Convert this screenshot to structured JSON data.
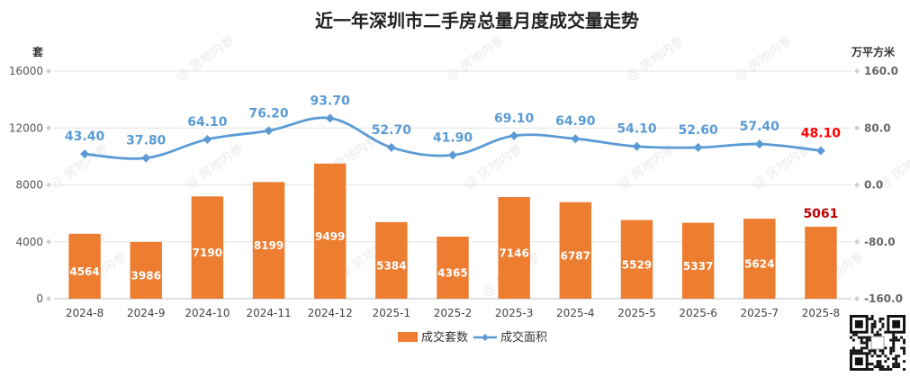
{
  "chart_data": {
    "type": "bar",
    "title": "近一年深圳市二手房总量月度成交量走势",
    "ylabel_left": "套",
    "ylabel_right": "万平方米",
    "categories": [
      "2024-8",
      "2024-9",
      "2024-10",
      "2024-11",
      "2024-12",
      "2025-1",
      "2025-2",
      "2025-3",
      "2025-4",
      "2025-5",
      "2025-6",
      "2025-7",
      "2025-8"
    ],
    "ylim_left": [
      0,
      16000
    ],
    "yticks_left": [
      "0",
      "4000",
      "8000",
      "12000",
      "16000"
    ],
    "ylim_right": [
      -160,
      160
    ],
    "yticks_right": [
      "-160.0",
      "-80.0",
      "0.0",
      "80.0",
      "160.0"
    ],
    "grid": true,
    "legend_position": "bottom",
    "series": [
      {
        "name": "成交套数",
        "type": "bar",
        "axis": "left",
        "color": "#ed7d31",
        "values": [
          4564,
          3986,
          7190,
          8199,
          9499,
          5384,
          4365,
          7146,
          6787,
          5529,
          5337,
          5624,
          5061
        ],
        "labels": [
          "4564",
          "3986",
          "7190",
          "8199",
          "9499",
          "5384",
          "4365",
          "7146",
          "6787",
          "5529",
          "5337",
          "5624",
          "5061"
        ],
        "highlight_last_color": "#c00000"
      },
      {
        "name": "成交面积",
        "type": "line",
        "axis": "right",
        "color": "#5b9bd5",
        "values": [
          43.4,
          37.8,
          64.1,
          76.2,
          93.7,
          52.7,
          41.9,
          69.1,
          64.9,
          54.1,
          52.6,
          57.4,
          48.1
        ],
        "labels": [
          "43.40",
          "37.80",
          "64.10",
          "76.20",
          "93.70",
          "52.70",
          "41.90",
          "69.10",
          "64.90",
          "54.10",
          "52.60",
          "57.40",
          "48.10"
        ],
        "highlight_last_color": "#ff0000"
      }
    ],
    "watermark": "@ 房地内参"
  }
}
